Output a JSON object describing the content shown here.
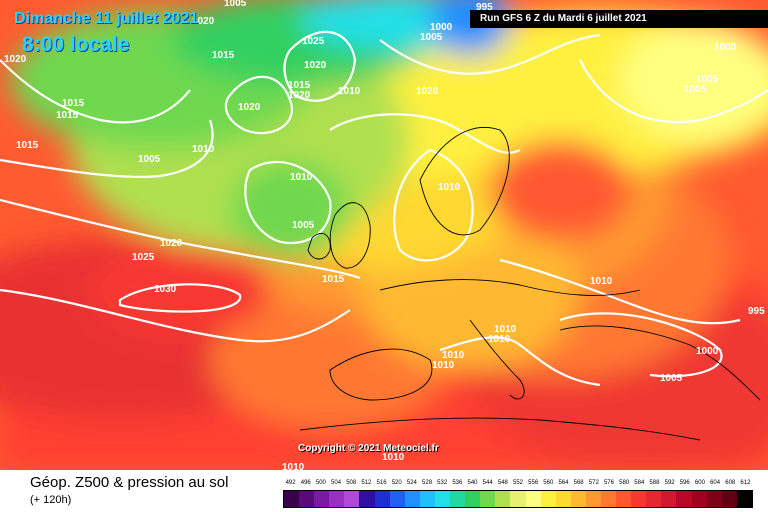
{
  "header": {
    "date": "Dimanche 11 juillet 2021",
    "time": "8:00 locale",
    "run": "Run GFS 6 Z du Mardi 6 juillet 2021"
  },
  "copyright": "Copyright © 2021 Meteociel.fr",
  "footer": {
    "title": "Géop. Z500 & pression au sol",
    "subtitle": "(+ 120h)"
  },
  "isobar_labels": [
    "1020",
    "1015",
    "1015",
    "1015",
    "1005",
    "1010",
    "1005",
    "1020",
    "1015",
    "1020",
    "1025",
    "1020",
    "1015",
    "1020",
    "1010",
    "1010",
    "1020",
    "1005",
    "1030",
    "1025",
    "1020",
    "1015",
    "1010",
    "1000",
    "1005",
    "1000",
    "1005",
    "1005",
    "1010",
    "1010",
    "1010",
    "1010",
    "1010",
    "1000",
    "995",
    "1005",
    "995",
    "1010",
    "1010"
  ],
  "legend": {
    "values": [
      "492",
      "496",
      "500",
      "504",
      "508",
      "512",
      "516",
      "520",
      "524",
      "528",
      "532",
      "536",
      "540",
      "544",
      "548",
      "552",
      "556",
      "560",
      "564",
      "568",
      "572",
      "576",
      "580",
      "584",
      "588",
      "592",
      "596",
      "600",
      "604",
      "608",
      "612"
    ],
    "colors": [
      "#3a004a",
      "#5a0a78",
      "#7a1aa0",
      "#9a30c0",
      "#b048d8",
      "#3010a0",
      "#2030d0",
      "#2060f0",
      "#2090ff",
      "#20c0ff",
      "#20e0e8",
      "#20d8a0",
      "#30d060",
      "#70d850",
      "#b0e050",
      "#e8f070",
      "#ffff80",
      "#fff040",
      "#ffd830",
      "#ffb830",
      "#ff9830",
      "#ff7830",
      "#ff5830",
      "#f83830",
      "#e82830",
      "#d01830",
      "#b80828",
      "#a00020",
      "#800018",
      "#600010",
      "#000000"
    ]
  }
}
